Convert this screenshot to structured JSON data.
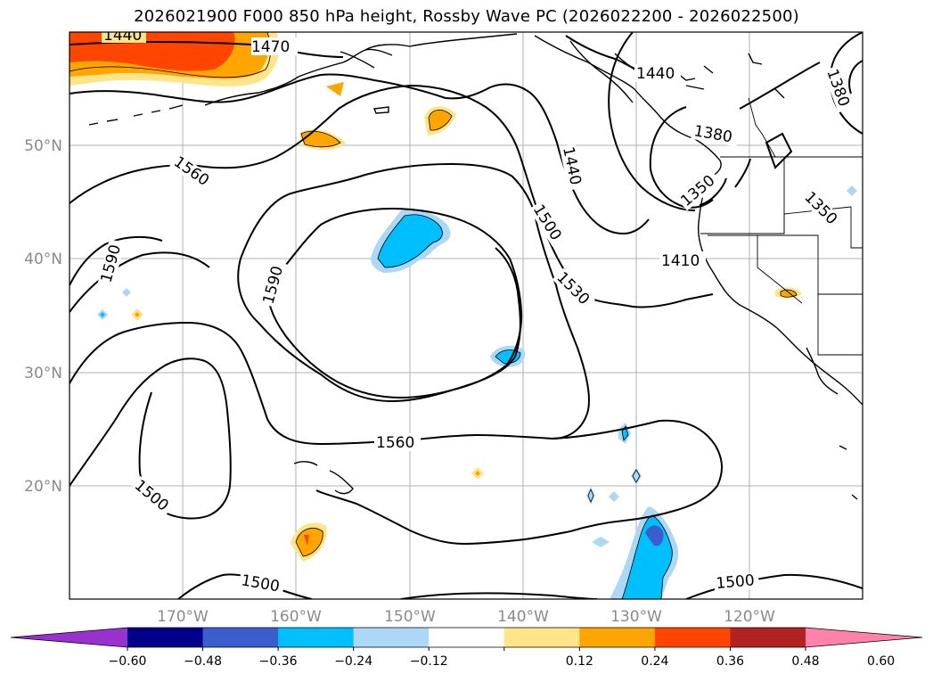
{
  "title": "2026021900 F000 850 hPa height, Rossby Wave PC (2026022200 - 2026022500)",
  "map": {
    "lon_ticks": [
      "170°W",
      "160°W",
      "150°W",
      "140°W",
      "130°W",
      "120°W"
    ],
    "lat_ticks": [
      "50°N",
      "40°N",
      "30°N",
      "20°N"
    ],
    "contour_labels": [
      "1440",
      "1470",
      "1440",
      "1380",
      "1380",
      "1560",
      "1440",
      "1350",
      "1350",
      "1500",
      "1590",
      "1590",
      "1410",
      "1530",
      "1560",
      "1500",
      "1500",
      "1500"
    ]
  },
  "colorbar": {
    "ticks": [
      "−0.60",
      "−0.48",
      "−0.36",
      "−0.24",
      "−0.12",
      "0.12",
      "0.24",
      "0.36",
      "0.48",
      "0.60"
    ],
    "colors": [
      "#9932cc",
      "#00008b",
      "#3a5fcd",
      "#00bfff",
      "#add8f5",
      "#ffffff",
      "#ffe48a",
      "#ffa500",
      "#ff4500",
      "#b22222",
      "#ff82ab"
    ]
  }
}
